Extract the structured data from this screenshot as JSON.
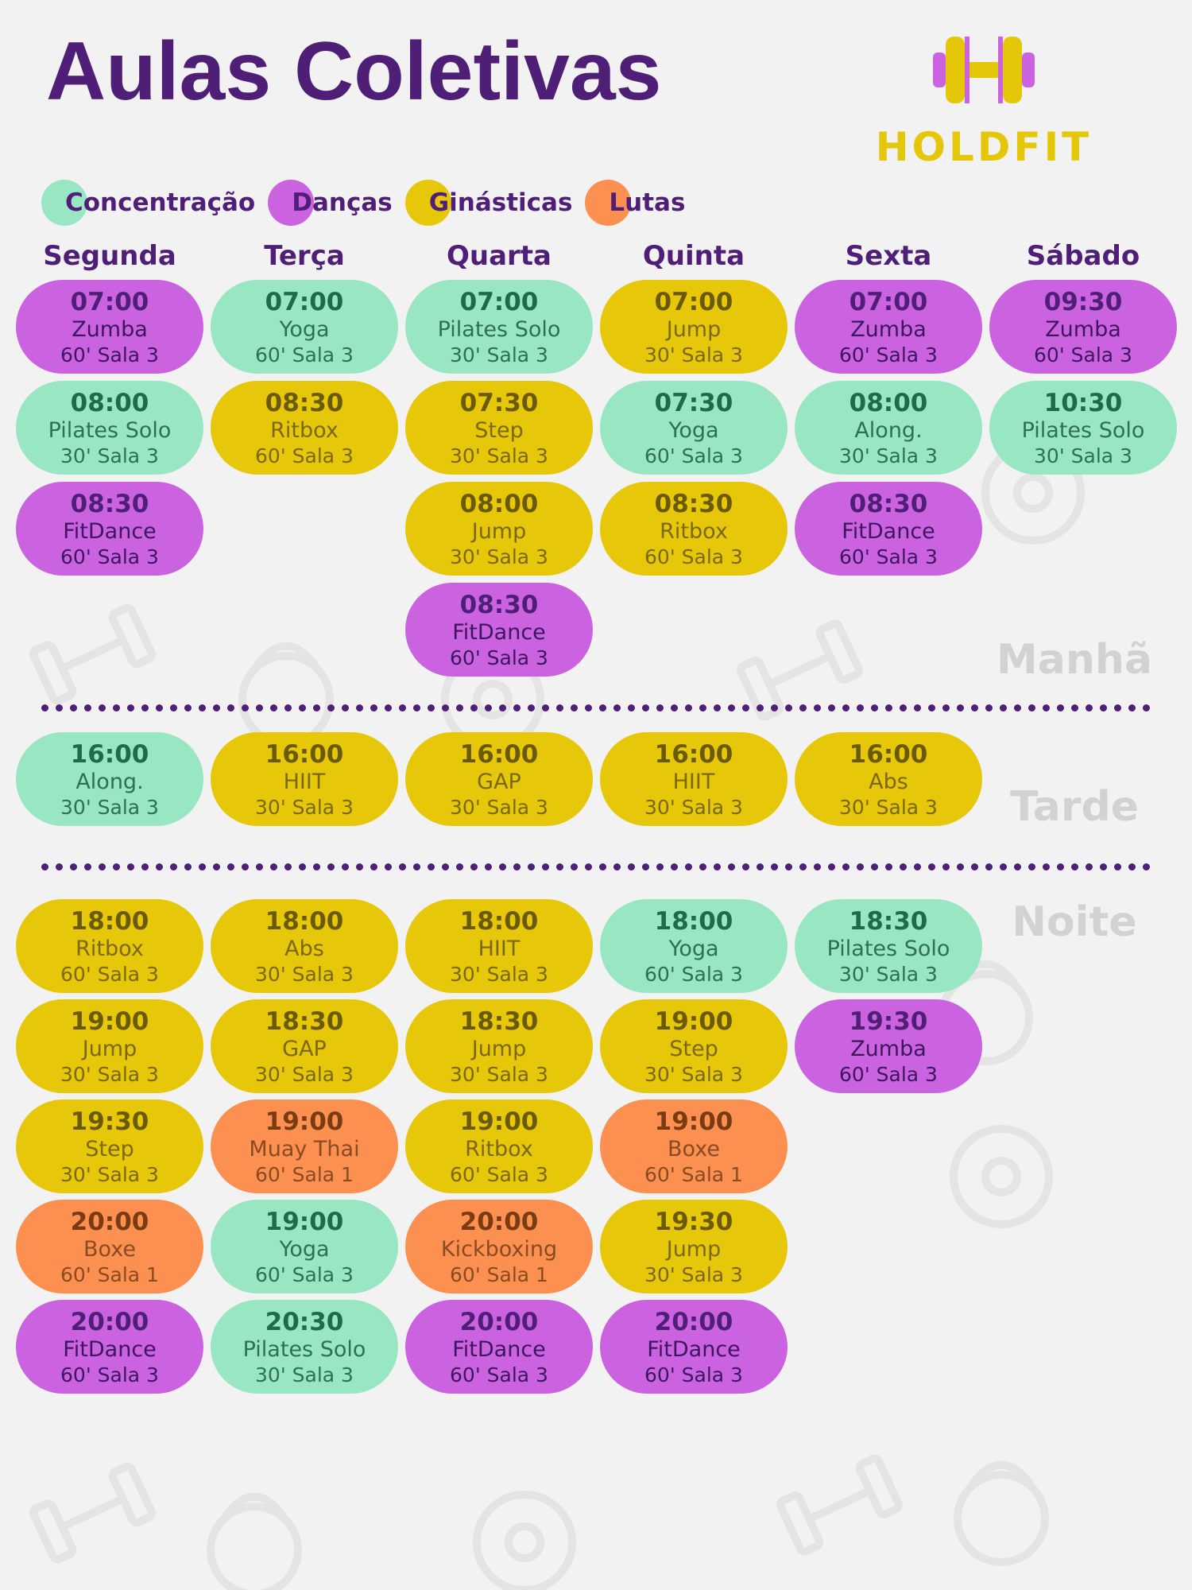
{
  "title": "Aulas Coletivas",
  "logo": {
    "text": "HOLDFIT",
    "icon": "dumbbell-h-icon"
  },
  "colors": {
    "concentracao": "#99e6c2",
    "dancas": "#cb62e0",
    "ginasticas": "#e6c70a",
    "lutas": "#fb9050",
    "brand_purple": "#4f1f78",
    "brand_yellow": "#e5c70a"
  },
  "legend": [
    {
      "label": "Concentração",
      "category": "concentracao"
    },
    {
      "label": "Danças",
      "category": "dancas"
    },
    {
      "label": "Ginásticas",
      "category": "ginasticas"
    },
    {
      "label": "Lutas",
      "category": "lutas"
    }
  ],
  "days": [
    "Segunda",
    "Terça",
    "Quarta",
    "Quinta",
    "Sexta",
    "Sábado"
  ],
  "periods": {
    "morning": "Manhã",
    "afternoon": "Tarde",
    "night": "Noite"
  },
  "morning": [
    [
      {
        "time": "07:00",
        "name": "Zumba",
        "info": "60' Sala 3",
        "category": "dancas"
      },
      {
        "time": "08:00",
        "name": "Pilates Solo",
        "info": "30' Sala 3",
        "category": "concentracao"
      },
      {
        "time": "08:30",
        "name": "FitDance",
        "info": "60' Sala 3",
        "category": "dancas"
      }
    ],
    [
      {
        "time": "07:00",
        "name": "Yoga",
        "info": "60' Sala 3",
        "category": "concentracao"
      },
      {
        "time": "08:30",
        "name": "Ritbox",
        "info": "60' Sala 3",
        "category": "ginasticas"
      }
    ],
    [
      {
        "time": "07:00",
        "name": "Pilates Solo",
        "info": "30' Sala 3",
        "category": "concentracao"
      },
      {
        "time": "07:30",
        "name": "Step",
        "info": "30' Sala 3",
        "category": "ginasticas"
      },
      {
        "time": "08:00",
        "name": "Jump",
        "info": "30' Sala 3",
        "category": "ginasticas"
      },
      {
        "time": "08:30",
        "name": "FitDance",
        "info": "60' Sala 3",
        "category": "dancas"
      }
    ],
    [
      {
        "time": "07:00",
        "name": "Jump",
        "info": "30' Sala 3",
        "category": "ginasticas"
      },
      {
        "time": "07:30",
        "name": "Yoga",
        "info": "60' Sala 3",
        "category": "concentracao"
      },
      {
        "time": "08:30",
        "name": "Ritbox",
        "info": "60' Sala 3",
        "category": "ginasticas"
      }
    ],
    [
      {
        "time": "07:00",
        "name": "Zumba",
        "info": "60' Sala 3",
        "category": "dancas"
      },
      {
        "time": "08:00",
        "name": "Along.",
        "info": "30' Sala 3",
        "category": "concentracao"
      },
      {
        "time": "08:30",
        "name": "FitDance",
        "info": "60' Sala 3",
        "category": "dancas"
      }
    ],
    [
      {
        "time": "09:30",
        "name": "Zumba",
        "info": "60' Sala 3",
        "category": "dancas"
      },
      {
        "time": "10:30",
        "name": "Pilates Solo",
        "info": "30' Sala 3",
        "category": "concentracao"
      }
    ]
  ],
  "afternoon": [
    [
      {
        "time": "16:00",
        "name": "Along.",
        "info": "30' Sala 3",
        "category": "concentracao"
      }
    ],
    [
      {
        "time": "16:00",
        "name": "HIIT",
        "info": "30' Sala 3",
        "category": "ginasticas"
      }
    ],
    [
      {
        "time": "16:00",
        "name": "GAP",
        "info": "30' Sala 3",
        "category": "ginasticas"
      }
    ],
    [
      {
        "time": "16:00",
        "name": "HIIT",
        "info": "30' Sala 3",
        "category": "ginasticas"
      }
    ],
    [
      {
        "time": "16:00",
        "name": "Abs",
        "info": "30' Sala 3",
        "category": "ginasticas"
      }
    ],
    []
  ],
  "night": [
    [
      {
        "time": "18:00",
        "name": "Ritbox",
        "info": "60' Sala 3",
        "category": "ginasticas"
      },
      {
        "time": "19:00",
        "name": "Jump",
        "info": "30' Sala 3",
        "category": "ginasticas"
      },
      {
        "time": "19:30",
        "name": "Step",
        "info": "30' Sala 3",
        "category": "ginasticas"
      },
      {
        "time": "20:00",
        "name": "Boxe",
        "info": "60' Sala 1",
        "category": "lutas"
      },
      {
        "time": "20:00",
        "name": "FitDance",
        "info": "60' Sala 3",
        "category": "dancas"
      }
    ],
    [
      {
        "time": "18:00",
        "name": "Abs",
        "info": "30' Sala 3",
        "category": "ginasticas"
      },
      {
        "time": "18:30",
        "name": "GAP",
        "info": "30' Sala 3",
        "category": "ginasticas"
      },
      {
        "time": "19:00",
        "name": "Muay Thai",
        "info": "60' Sala 1",
        "category": "lutas"
      },
      {
        "time": "19:00",
        "name": "Yoga",
        "info": "60' Sala 3",
        "category": "concentracao"
      },
      {
        "time": "20:30",
        "name": "Pilates Solo",
        "info": "30' Sala 3",
        "category": "concentracao"
      }
    ],
    [
      {
        "time": "18:00",
        "name": "HIIT",
        "info": "30' Sala 3",
        "category": "ginasticas"
      },
      {
        "time": "18:30",
        "name": "Jump",
        "info": "30' Sala 3",
        "category": "ginasticas"
      },
      {
        "time": "19:00",
        "name": "Ritbox",
        "info": "60' Sala 3",
        "category": "ginasticas"
      },
      {
        "time": "20:00",
        "name": "Kickboxing",
        "info": "60' Sala 1",
        "category": "lutas"
      },
      {
        "time": "20:00",
        "name": "FitDance",
        "info": "60' Sala 3",
        "category": "dancas"
      }
    ],
    [
      {
        "time": "18:00",
        "name": "Yoga",
        "info": "60' Sala 3",
        "category": "concentracao"
      },
      {
        "time": "19:00",
        "name": "Step",
        "info": "30' Sala 3",
        "category": "ginasticas"
      },
      {
        "time": "19:00",
        "name": "Boxe",
        "info": "60' Sala 1",
        "category": "lutas"
      },
      {
        "time": "19:30",
        "name": "Jump",
        "info": "30' Sala 3",
        "category": "ginasticas"
      },
      {
        "time": "20:00",
        "name": "FitDance",
        "info": "60' Sala 3",
        "category": "dancas"
      }
    ],
    [
      {
        "time": "18:30",
        "name": "Pilates Solo",
        "info": "30' Sala 3",
        "category": "concentracao"
      },
      {
        "time": "19:30",
        "name": "Zumba",
        "info": "60' Sala 3",
        "category": "dancas"
      }
    ],
    []
  ]
}
